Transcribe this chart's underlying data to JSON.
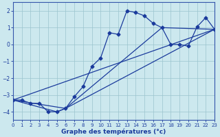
{
  "xlabel": "Graphe des températures (°c)",
  "xlim": [
    0,
    23
  ],
  "ylim": [
    -4.5,
    2.5
  ],
  "yticks": [
    -4,
    -3,
    -2,
    -1,
    0,
    1,
    2
  ],
  "xticks": [
    0,
    1,
    2,
    3,
    4,
    5,
    6,
    7,
    8,
    9,
    10,
    11,
    12,
    13,
    14,
    15,
    16,
    17,
    18,
    19,
    20,
    21,
    22,
    23
  ],
  "bg_color": "#cce8ee",
  "grid_color": "#9ac4ce",
  "line_color": "#1a3a9c",
  "line1_x": [
    0,
    1,
    2,
    3,
    4,
    5,
    6,
    7,
    8,
    9,
    10,
    11,
    12,
    13,
    14,
    15,
    16,
    17,
    18,
    19,
    20,
    21,
    22,
    23
  ],
  "line1_y": [
    -3.3,
    -3.3,
    -3.5,
    -3.5,
    -4.0,
    -4.0,
    -3.8,
    -3.1,
    -2.5,
    -1.3,
    -0.8,
    0.7,
    0.6,
    2.0,
    1.9,
    1.7,
    1.25,
    1.0,
    0.0,
    0.0,
    -0.1,
    1.05,
    1.6,
    0.9
  ],
  "line2_x": [
    0,
    23
  ],
  "line2_y": [
    -3.3,
    0.9
  ],
  "line3_x": [
    0,
    6,
    23
  ],
  "line3_y": [
    -3.3,
    -3.8,
    0.9
  ],
  "line4_x": [
    0,
    5,
    6,
    17,
    23
  ],
  "line4_y": [
    -3.3,
    -4.0,
    -3.8,
    1.0,
    0.9
  ]
}
